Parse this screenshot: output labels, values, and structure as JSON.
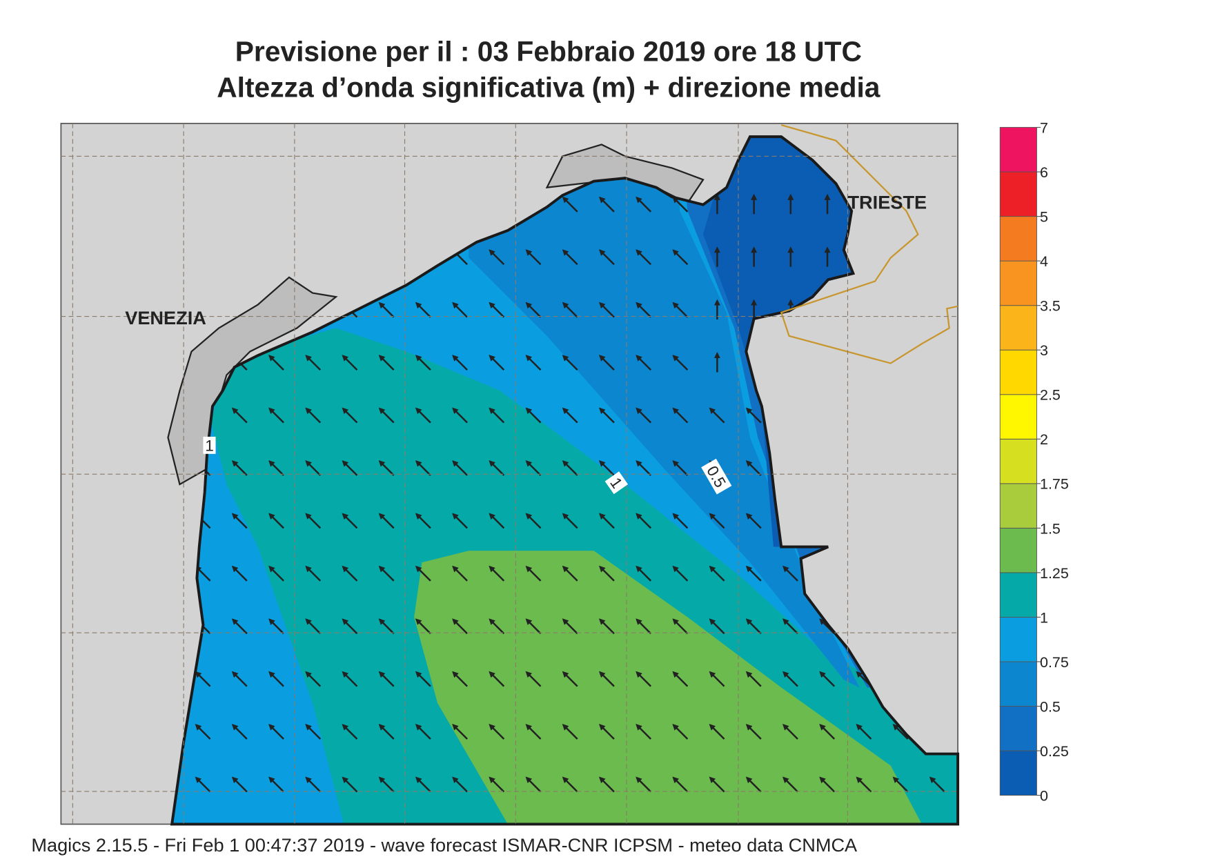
{
  "header": {
    "title": "Previsione per il  :  03  Febbraio 2019   ore 18 UTC",
    "subtitle": "Altezza d’onda significativa (m) + direzione media"
  },
  "places": {
    "venezia": "VENEZIA",
    "trieste": "TRIESTE"
  },
  "contour_labels": [
    "1",
    "0.5",
    "1"
  ],
  "legend": {
    "levels": [
      0,
      0.25,
      0.5,
      0.75,
      1,
      1.25,
      1.5,
      1.75,
      2,
      2.5,
      3,
      3.5,
      4,
      5,
      6,
      7
    ],
    "colors": [
      "#0a5db3",
      "#1170c4",
      "#0d86d0",
      "#0a9ee0",
      "#05aaa8",
      "#6cbb4f",
      "#a8cc3b",
      "#d6e020",
      "#fff700",
      "#ffd800",
      "#fbb41a",
      "#f99420",
      "#f47b20",
      "#ec2026",
      "#ee1460"
    ]
  },
  "footer": "Magics 2.15.5 - Fri Feb  1 00:47:37 2019 - wave forecast  ISMAR-CNR  ICPSM - meteo data   CNMCA"
}
